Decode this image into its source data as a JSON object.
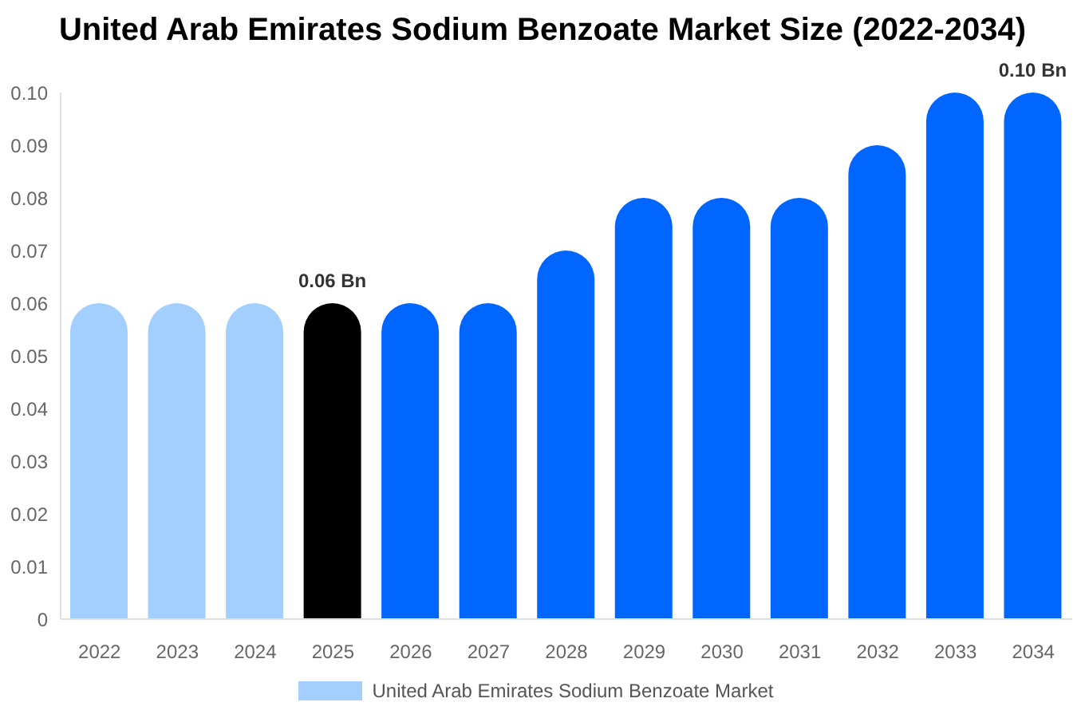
{
  "chart_data": {
    "type": "bar",
    "title": "United Arab Emirates Sodium Benzoate Market Size (2022-2034)",
    "categories": [
      "2022",
      "2023",
      "2024",
      "2025",
      "2026",
      "2027",
      "2028",
      "2029",
      "2030",
      "2031",
      "2032",
      "2033",
      "2034"
    ],
    "series": [
      {
        "name": "United Arab Emirates Sodium Benzoate Market",
        "color": "#a3cfff",
        "colors": [
          "#a3cfff",
          "#a3cfff",
          "#a3cfff",
          "#000000",
          "#0066ff",
          "#0066ff",
          "#0066ff",
          "#0066ff",
          "#0066ff",
          "#0066ff",
          "#0066ff",
          "#0066ff",
          "#0066ff"
        ],
        "values": [
          0.06,
          0.06,
          0.06,
          0.06,
          0.06,
          0.06,
          0.07,
          0.08,
          0.08,
          0.08,
          0.09,
          0.1,
          0.1
        ],
        "value_labels": [
          null,
          null,
          null,
          "0.06 Bn",
          null,
          null,
          null,
          null,
          null,
          null,
          null,
          null,
          "0.10 Bn"
        ]
      }
    ],
    "ylim": [
      0,
      0.1
    ],
    "yticks": [
      0,
      0.01,
      0.02,
      0.03,
      0.04,
      0.05,
      0.06,
      0.07,
      0.08,
      0.09,
      {
        "value": 0.1,
        "label": "0.10"
      }
    ],
    "grid": false,
    "legend": "bottom"
  }
}
